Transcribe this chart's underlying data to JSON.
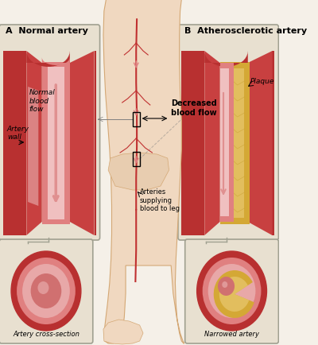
{
  "bg_color": "#f5f0e8",
  "title_A": "A  Normal artery",
  "title_B": "B  Atherosclerotic artery",
  "label_normal_flow": "Normal\nblood\nflow",
  "label_artery_wall": "Artery\nwall",
  "label_decreased_flow": "Decreased\nblood flow",
  "label_plaque": "Plaque",
  "label_cross_section": "Artery cross-section",
  "label_narrowed": "Narrowed artery",
  "label_arteries": "Arteries\nsupplying\nblood to leg",
  "artery_red_dark": "#b83030",
  "artery_red_mid": "#c84040",
  "artery_red_light": "#e08080",
  "artery_red_inner": "#d06060",
  "artery_pink": "#e8a0a0",
  "plaque_yellow": "#d4a835",
  "plaque_light": "#e8c870",
  "skin_color": "#f0d8c0",
  "skin_dark": "#d4a875",
  "panel_bg": "#e8e0d0",
  "gray_border": "#a0a090",
  "text_color": "#000000",
  "arrow_color": "#c87878",
  "leg_artery_color": "#c03030"
}
